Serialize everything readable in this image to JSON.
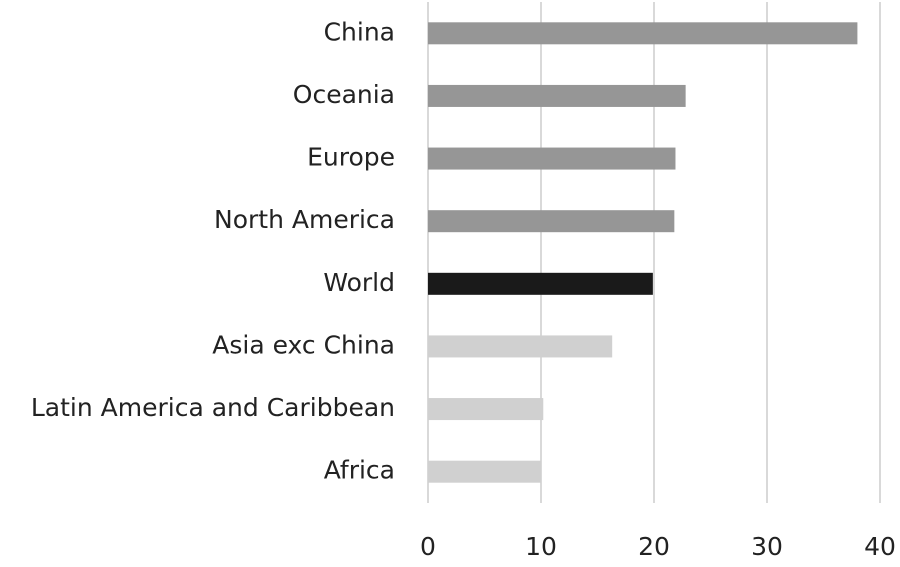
{
  "chart_data": {
    "type": "bar",
    "orientation": "horizontal",
    "categories": [
      "China",
      "Oceania",
      "Europe",
      "North America",
      "World",
      "Asia exc China",
      "Latin America and Caribbean",
      "Africa"
    ],
    "values": [
      38.0,
      22.8,
      21.9,
      21.8,
      19.9,
      16.3,
      10.2,
      10.0
    ],
    "colors": [
      "#969696",
      "#969696",
      "#969696",
      "#969696",
      "#1a1a1a",
      "#d0d0d0",
      "#d0d0d0",
      "#d0d0d0"
    ],
    "xlim": [
      0,
      40
    ],
    "xticks": [
      0,
      10,
      20,
      30,
      40
    ],
    "grid": true
  }
}
